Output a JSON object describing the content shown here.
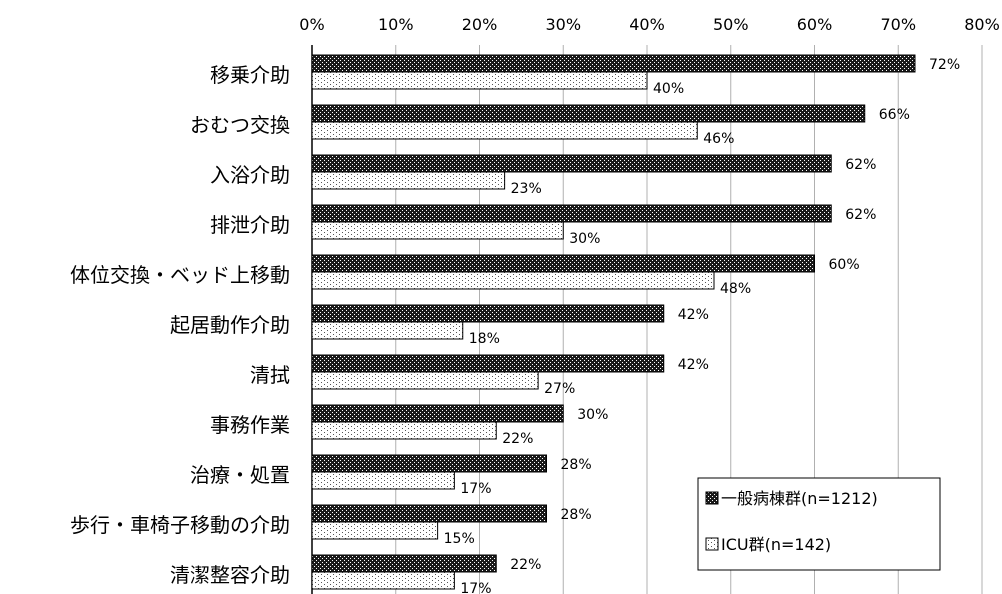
{
  "chart_data": {
    "type": "bar",
    "orientation": "horizontal",
    "categories": [
      "移乗介助",
      "おむつ交換",
      "入浴介助",
      "排泄介助",
      "体位交換・ベッド上移動",
      "起居動作介助",
      "清拭",
      "事務作業",
      "治療・処置",
      "歩行・車椅子移動の介助",
      "清潔整容介助"
    ],
    "series": [
      {
        "name": "一般病棟群(n=1212)",
        "values": [
          72,
          66,
          62,
          62,
          60,
          42,
          42,
          30,
          28,
          28,
          22
        ],
        "labels": [
          "72%",
          "66%",
          "62%",
          "62%",
          "60%",
          "42%",
          "42%",
          "30%",
          "28%",
          "28%",
          "22%"
        ],
        "fill": "dark-dotted"
      },
      {
        "name": "ICU群(n=142)",
        "values": [
          40,
          46,
          23,
          30,
          48,
          18,
          27,
          22,
          17,
          15,
          17
        ],
        "labels": [
          "40%",
          "46%",
          "23%",
          "30%",
          "48%",
          "18%",
          "27%",
          "22%",
          "17%",
          "15%",
          "17%"
        ],
        "fill": "light-dotted"
      }
    ],
    "xlim": [
      0,
      80
    ],
    "xticks": [
      "0%",
      "10%",
      "20%",
      "30%",
      "40%",
      "50%",
      "60%",
      "70%",
      "80%"
    ],
    "x_axis_position": "top",
    "grid": true,
    "legend_position": "bottom-right",
    "colors": {
      "series1": "#1a1a1a",
      "series2": "#ffffff",
      "grid": "#b0b0b0",
      "axis": "#000000"
    }
  }
}
